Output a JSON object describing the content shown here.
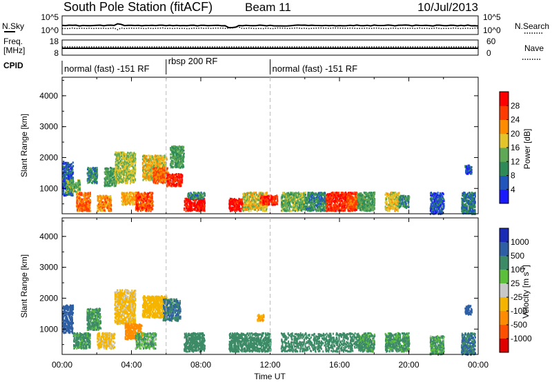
{
  "header": {
    "station": "South Pole Station (fitACF)",
    "beam": "Beam 11",
    "date": "10/Jul/2013"
  },
  "noise_panel": {
    "left_label": "N.Sky",
    "left_ticks": [
      "10^5",
      "10^0"
    ],
    "right_label": "N.Search",
    "right_ticks": [
      "10^5",
      "10^0"
    ]
  },
  "freq_panel": {
    "left_label_line1": "Freq.",
    "left_label_line2": "[MHz]",
    "left_ticks": [
      "18",
      "8"
    ],
    "right_label": "Nave",
    "right_ticks": [
      "60",
      "0"
    ]
  },
  "cpid_panel": {
    "label": "CPID",
    "segments": [
      {
        "start_hour": 0.0,
        "end_hour": 6.0,
        "label": "normal (fast) -151 RF"
      },
      {
        "start_hour": 6.0,
        "end_hour": 12.0,
        "label": "rbsp 200 RF"
      },
      {
        "start_hour": 12.0,
        "end_hour": 24.0,
        "label": "normal (fast) -151 RF"
      }
    ]
  },
  "axes": {
    "ylabel": "Slant Range [km]",
    "yticks": [
      "1000",
      "2000",
      "3000",
      "4000"
    ],
    "xlabel": "Time UT",
    "xticks": [
      "00:00",
      "04:00",
      "08:00",
      "12:00",
      "16:00",
      "20:00",
      "00:00"
    ]
  },
  "power_colorbar": {
    "label": "Power [dB]",
    "ticks": [
      "4",
      "8",
      "12",
      "16",
      "20",
      "24",
      "28"
    ],
    "colors": [
      "#1a1aff",
      "#2255bb",
      "#2e8b57",
      "#5fa855",
      "#e3c42a",
      "#ff8c00",
      "#ff3b00",
      "#ff0000"
    ]
  },
  "velocity_colorbar": {
    "label": "Velocity [m s",
    "label_sup": "-1",
    "label_end": "]",
    "ticks": [
      "1000",
      "500",
      "100",
      "25",
      "-25",
      "-100",
      "-500",
      "-1000"
    ],
    "colors": [
      "#1a2bb5",
      "#2e5fa5",
      "#3d8a66",
      "#5cbf3c",
      "#c8c8c8",
      "#f4b400",
      "#ff8c00",
      "#ff5000",
      "#e00000"
    ]
  },
  "chart_data": [
    {
      "type": "heatmap",
      "title": "Power",
      "xlabel": "Time UT",
      "ylabel": "Slant Range [km]",
      "xlim": [
        0,
        24
      ],
      "ylim": [
        180,
        4600
      ],
      "color_scale": [
        0,
        32
      ],
      "blobs": [
        {
          "t": [
            0.0,
            0.6
          ],
          "r": [
            800,
            1900
          ],
          "v": 6
        },
        {
          "t": [
            0.2,
            1.0
          ],
          "r": [
            900,
            1300
          ],
          "v": 14
        },
        {
          "t": [
            0.8,
            1.6
          ],
          "r": [
            300,
            900
          ],
          "v": 24
        },
        {
          "t": [
            1.4,
            2.0
          ],
          "r": [
            1200,
            1700
          ],
          "v": 10
        },
        {
          "t": [
            2.0,
            2.8
          ],
          "r": [
            300,
            800
          ],
          "v": 22
        },
        {
          "t": [
            2.4,
            3.1
          ],
          "r": [
            1100,
            1700
          ],
          "v": 12
        },
        {
          "t": [
            3.0,
            4.2
          ],
          "r": [
            1200,
            2200
          ],
          "v": 16
        },
        {
          "t": [
            3.4,
            4.4
          ],
          "r": [
            500,
            900
          ],
          "v": 20
        },
        {
          "t": [
            4.2,
            5.2
          ],
          "r": [
            300,
            900
          ],
          "v": 26
        },
        {
          "t": [
            4.6,
            6.0
          ],
          "r": [
            1300,
            2100
          ],
          "v": 18
        },
        {
          "t": [
            5.2,
            6.1
          ],
          "r": [
            1200,
            1700
          ],
          "v": 24
        },
        {
          "t": [
            6.0,
            6.9
          ],
          "r": [
            1100,
            1500
          ],
          "v": 28
        },
        {
          "t": [
            6.2,
            7.0
          ],
          "r": [
            1700,
            2400
          ],
          "v": 12
        },
        {
          "t": [
            7.0,
            8.2
          ],
          "r": [
            300,
            700
          ],
          "v": 30
        },
        {
          "t": [
            7.2,
            8.2
          ],
          "r": [
            700,
            900
          ],
          "v": 10
        },
        {
          "t": [
            9.6,
            10.4
          ],
          "r": [
            300,
            700
          ],
          "v": 30
        },
        {
          "t": [
            10.4,
            11.8
          ],
          "r": [
            300,
            900
          ],
          "v": 18
        },
        {
          "t": [
            11.4,
            12.4
          ],
          "r": [
            500,
            800
          ],
          "v": 28
        },
        {
          "t": [
            12.6,
            14.0
          ],
          "r": [
            300,
            900
          ],
          "v": 14
        },
        {
          "t": [
            14.0,
            15.2
          ],
          "r": [
            300,
            900
          ],
          "v": 10
        },
        {
          "t": [
            15.2,
            17.0
          ],
          "r": [
            300,
            900
          ],
          "v": 28
        },
        {
          "t": [
            16.4,
            17.4
          ],
          "r": [
            400,
            800
          ],
          "v": 24
        },
        {
          "t": [
            17.0,
            18.0
          ],
          "r": [
            300,
            900
          ],
          "v": 12
        },
        {
          "t": [
            18.6,
            19.4
          ],
          "r": [
            300,
            900
          ],
          "v": 18
        },
        {
          "t": [
            19.4,
            20.0
          ],
          "r": [
            400,
            800
          ],
          "v": 10
        },
        {
          "t": [
            21.2,
            22.0
          ],
          "r": [
            200,
            900
          ],
          "v": 6
        },
        {
          "t": [
            23.0,
            23.8
          ],
          "r": [
            200,
            900
          ],
          "v": 8
        },
        {
          "t": [
            23.2,
            23.6
          ],
          "r": [
            1500,
            1800
          ],
          "v": 6
        }
      ]
    },
    {
      "type": "heatmap",
      "title": "Velocity",
      "xlabel": "Time UT",
      "ylabel": "Slant Range [km]",
      "xlim": [
        0,
        24
      ],
      "ylim": [
        180,
        4600
      ],
      "color_scale": [
        -1000,
        1000
      ],
      "blobs": [
        {
          "t": [
            0.0,
            0.6
          ],
          "r": [
            900,
            1800
          ],
          "v": 500
        },
        {
          "t": [
            0.6,
            1.6
          ],
          "r": [
            400,
            900
          ],
          "v": 100
        },
        {
          "t": [
            1.4,
            2.2
          ],
          "r": [
            1000,
            1700
          ],
          "v": 100
        },
        {
          "t": [
            2.0,
            3.0
          ],
          "r": [
            400,
            900
          ],
          "v": -100
        },
        {
          "t": [
            3.0,
            4.2
          ],
          "r": [
            1200,
            2300
          ],
          "v": -100
        },
        {
          "t": [
            3.6,
            4.6
          ],
          "r": [
            700,
            1200
          ],
          "v": -500
        },
        {
          "t": [
            4.2,
            5.4
          ],
          "r": [
            400,
            900
          ],
          "v": 50
        },
        {
          "t": [
            4.6,
            6.0
          ],
          "r": [
            1400,
            2100
          ],
          "v": -200
        },
        {
          "t": [
            5.8,
            6.8
          ],
          "r": [
            1300,
            2000
          ],
          "v": 300
        },
        {
          "t": [
            7.0,
            8.2
          ],
          "r": [
            300,
            900
          ],
          "v": 150
        },
        {
          "t": [
            9.6,
            12.0
          ],
          "r": [
            300,
            900
          ],
          "v": 150
        },
        {
          "t": [
            11.2,
            11.6
          ],
          "r": [
            1300,
            1500
          ],
          "v": -300
        },
        {
          "t": [
            12.6,
            17.0
          ],
          "r": [
            300,
            900
          ],
          "v": 150
        },
        {
          "t": [
            17.0,
            18.0
          ],
          "r": [
            300,
            900
          ],
          "v": 100
        },
        {
          "t": [
            18.6,
            20.0
          ],
          "r": [
            300,
            900
          ],
          "v": 100
        },
        {
          "t": [
            21.2,
            22.0
          ],
          "r": [
            200,
            800
          ],
          "v": 60
        },
        {
          "t": [
            23.0,
            23.8
          ],
          "r": [
            200,
            900
          ],
          "v": 300
        },
        {
          "t": [
            23.2,
            23.6
          ],
          "r": [
            1500,
            1800
          ],
          "v": 400
        }
      ]
    }
  ]
}
